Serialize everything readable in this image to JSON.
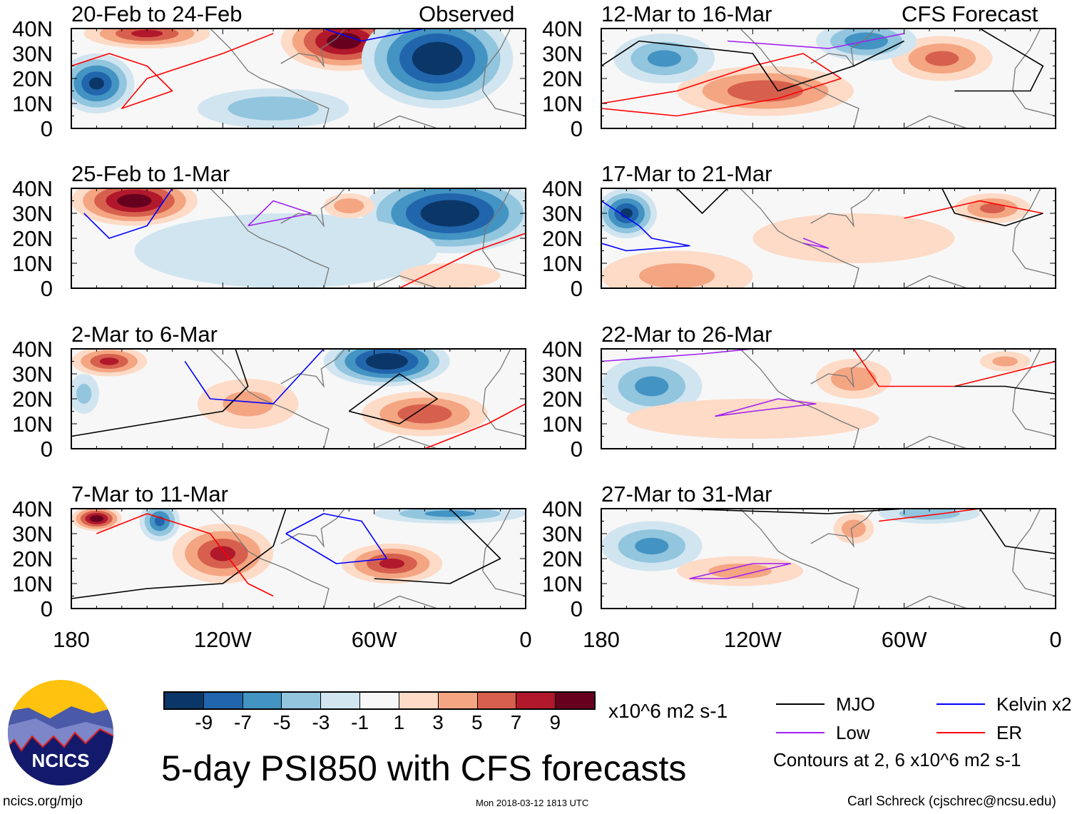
{
  "labels": {
    "observed": "Observed",
    "forecast": "CFS Forecast"
  },
  "lat_ticks": [
    "40N",
    "30N",
    "20N",
    "10N",
    "0"
  ],
  "lon_ticks": [
    "180",
    "120W",
    "60W",
    "0"
  ],
  "panels": [
    {
      "title": "20-Feb to 24-Feb",
      "anomalies": [
        [
          -170,
          18,
          -9,
          15,
          12
        ],
        [
          -72,
          35,
          10,
          25,
          12
        ],
        [
          -150,
          38,
          7,
          25,
          6
        ],
        [
          -35,
          28,
          -11,
          30,
          20
        ],
        [
          -100,
          8,
          -4,
          30,
          8
        ]
      ],
      "contours": [
        {
          "type": "ER",
          "pts": [
            [
              -180,
              25
            ],
            [
              -165,
              30
            ],
            [
              -150,
              25
            ],
            [
              -140,
              15
            ],
            [
              -160,
              8
            ],
            [
              -150,
              20
            ],
            [
              -120,
              30
            ],
            [
              -100,
              38
            ]
          ]
        },
        {
          "type": "Kelvin",
          "pts": [
            [
              -80,
              40
            ],
            [
              -65,
              35
            ],
            [
              -40,
              40
            ]
          ]
        }
      ]
    },
    {
      "title": "25-Feb to 1-Mar",
      "anomalies": [
        [
          -155,
          35,
          10,
          25,
          10
        ],
        [
          -30,
          30,
          -11,
          35,
          16
        ],
        [
          -95,
          15,
          -2,
          60,
          15
        ],
        [
          -70,
          33,
          4,
          10,
          5
        ],
        [
          -30,
          5,
          2,
          20,
          5
        ]
      ],
      "contours": [
        {
          "type": "Kelvin",
          "pts": [
            [
              -175,
              30
            ],
            [
              -165,
              20
            ],
            [
              -150,
              25
            ],
            [
              -140,
              40
            ]
          ]
        },
        {
          "type": "Low",
          "pts": [
            [
              -110,
              25
            ],
            [
              -100,
              35
            ],
            [
              -85,
              30
            ],
            [
              -110,
              25
            ]
          ]
        },
        {
          "type": "ER",
          "pts": [
            [
              -50,
              0
            ],
            [
              -20,
              15
            ],
            [
              0,
              22
            ]
          ]
        }
      ]
    },
    {
      "title": "2-Mar to 6-Mar",
      "anomalies": [
        [
          -165,
          35,
          7,
          15,
          6
        ],
        [
          -55,
          35,
          -11,
          25,
          10
        ],
        [
          -40,
          14,
          6,
          25,
          9
        ],
        [
          -110,
          18,
          3,
          20,
          10
        ],
        [
          -175,
          22,
          -3,
          6,
          8
        ]
      ],
      "contours": [
        {
          "type": "MJO",
          "pts": [
            [
              -180,
              5
            ],
            [
              -150,
              10
            ],
            [
              -120,
              15
            ],
            [
              -110,
              25
            ],
            [
              -115,
              40
            ]
          ]
        },
        {
          "type": "MJO",
          "pts": [
            [
              -70,
              15
            ],
            [
              -50,
              30
            ],
            [
              -35,
              20
            ],
            [
              -50,
              10
            ],
            [
              -70,
              15
            ]
          ]
        },
        {
          "type": "Kelvin",
          "pts": [
            [
              -135,
              35
            ],
            [
              -125,
              20
            ],
            [
              -100,
              18
            ],
            [
              -80,
              40
            ]
          ]
        },
        {
          "type": "ER",
          "pts": [
            [
              -40,
              0
            ],
            [
              -15,
              10
            ],
            [
              0,
              18
            ]
          ]
        }
      ]
    },
    {
      "title": "7-Mar to 11-Mar",
      "anomalies": [
        [
          -170,
          36,
          10,
          10,
          5
        ],
        [
          -145,
          35,
          -7,
          8,
          8
        ],
        [
          -120,
          22,
          7,
          20,
          12
        ],
        [
          -53,
          18,
          7,
          20,
          8
        ],
        [
          -30,
          38,
          -5,
          30,
          4
        ]
      ],
      "contours": [
        {
          "type": "MJO",
          "pts": [
            [
              -180,
              4
            ],
            [
              -150,
              8
            ],
            [
              -120,
              10
            ],
            [
              -100,
              25
            ],
            [
              -95,
              40
            ]
          ]
        },
        {
          "type": "MJO",
          "pts": [
            [
              -60,
              12
            ],
            [
              -30,
              10
            ],
            [
              -10,
              20
            ],
            [
              -30,
              40
            ]
          ]
        },
        {
          "type": "Kelvin",
          "pts": [
            [
              -95,
              30
            ],
            [
              -80,
              38
            ],
            [
              -65,
              35
            ],
            [
              -55,
              20
            ],
            [
              -75,
              18
            ],
            [
              -95,
              30
            ]
          ]
        },
        {
          "type": "ER",
          "pts": [
            [
              -170,
              30
            ],
            [
              -150,
              38
            ],
            [
              -125,
              30
            ],
            [
              -110,
              10
            ],
            [
              -100,
              5
            ]
          ]
        }
      ]
    },
    {
      "title": "12-Mar to 16-Mar",
      "anomalies": [
        [
          -115,
          15,
          6,
          35,
          10
        ],
        [
          -155,
          28,
          -5,
          20,
          10
        ],
        [
          -45,
          28,
          5,
          20,
          9
        ],
        [
          -75,
          35,
          -6,
          20,
          8
        ]
      ],
      "contours": [
        {
          "type": "ER",
          "pts": [
            [
              -180,
              10
            ],
            [
              -150,
              15
            ],
            [
              -120,
              25
            ],
            [
              -100,
              30
            ],
            [
              -85,
              20
            ],
            [
              -110,
              12
            ],
            [
              -150,
              5
            ],
            [
              -180,
              8
            ]
          ]
        },
        {
          "type": "MJO",
          "pts": [
            [
              -180,
              25
            ],
            [
              -165,
              35
            ],
            [
              -120,
              30
            ],
            [
              -110,
              15
            ],
            [
              -80,
              25
            ],
            [
              -60,
              35
            ]
          ]
        },
        {
          "type": "MJO",
          "pts": [
            [
              -40,
              15
            ],
            [
              -10,
              15
            ],
            [
              -5,
              25
            ],
            [
              -30,
              40
            ]
          ]
        },
        {
          "type": "Low",
          "pts": [
            [
              -130,
              35
            ],
            [
              -90,
              32
            ],
            [
              -60,
              38
            ]
          ]
        }
      ]
    },
    {
      "title": "17-Mar to 21-Mar",
      "anomalies": [
        [
          -170,
          30,
          -9,
          12,
          10
        ],
        [
          -25,
          32,
          5,
          15,
          6
        ],
        [
          -150,
          5,
          3,
          30,
          10
        ],
        [
          -80,
          20,
          1,
          40,
          10
        ]
      ],
      "contours": [
        {
          "type": "Kelvin",
          "pts": [
            [
              -180,
              35
            ],
            [
              -165,
              25
            ],
            [
              -160,
              20
            ],
            [
              -145,
              17
            ],
            [
              -170,
              15
            ],
            [
              -180,
              18
            ]
          ]
        },
        {
          "type": "MJO",
          "pts": [
            [
              -150,
              40
            ],
            [
              -140,
              30
            ],
            [
              -130,
              40
            ]
          ]
        },
        {
          "type": "Low",
          "pts": [
            [
              -100,
              18
            ],
            [
              -90,
              16
            ],
            [
              -100,
              20
            ]
          ]
        },
        {
          "type": "ER",
          "pts": [
            [
              -60,
              28
            ],
            [
              -30,
              35
            ],
            [
              -5,
              30
            ]
          ]
        },
        {
          "type": "MJO",
          "pts": [
            [
              -45,
              40
            ],
            [
              -40,
              30
            ],
            [
              -20,
              25
            ],
            [
              -5,
              30
            ]
          ]
        }
      ]
    },
    {
      "title": "22-Mar to 26-Mar",
      "anomalies": [
        [
          -160,
          25,
          -5,
          20,
          12
        ],
        [
          -80,
          28,
          4,
          15,
          8
        ],
        [
          -120,
          12,
          2,
          50,
          8
        ],
        [
          -20,
          35,
          3,
          10,
          4
        ]
      ],
      "contours": [
        {
          "type": "Low",
          "pts": [
            [
              -135,
              13
            ],
            [
              -110,
              20
            ],
            [
              -95,
              18
            ],
            [
              -120,
              15
            ],
            [
              -135,
              13
            ]
          ]
        },
        {
          "type": "Low",
          "pts": [
            [
              -180,
              35
            ],
            [
              -140,
              38
            ],
            [
              -120,
              40
            ]
          ]
        },
        {
          "type": "ER",
          "pts": [
            [
              -80,
              40
            ],
            [
              -70,
              25
            ],
            [
              -40,
              25
            ],
            [
              0,
              35
            ]
          ]
        },
        {
          "type": "MJO",
          "pts": [
            [
              -40,
              25
            ],
            [
              -20,
              25
            ],
            [
              0,
              22
            ]
          ]
        }
      ]
    },
    {
      "title": "27-Mar to 31-Mar",
      "anomalies": [
        [
          -160,
          25,
          -5,
          20,
          10
        ],
        [
          -125,
          15,
          3,
          25,
          6
        ],
        [
          -80,
          32,
          4,
          8,
          6
        ],
        [
          -50,
          38,
          -4,
          20,
          4
        ]
      ],
      "contours": [
        {
          "type": "Low",
          "pts": [
            [
              -145,
              12
            ],
            [
              -120,
              18
            ],
            [
              -105,
              18
            ],
            [
              -130,
              12
            ],
            [
              -145,
              12
            ]
          ]
        },
        {
          "type": "ER",
          "pts": [
            [
              -70,
              35
            ],
            [
              -45,
              38
            ],
            [
              -30,
              40
            ]
          ]
        },
        {
          "type": "MJO",
          "pts": [
            [
              -150,
              40
            ],
            [
              -90,
              38
            ],
            [
              -60,
              40
            ]
          ]
        },
        {
          "type": "MJO",
          "pts": [
            [
              -30,
              40
            ],
            [
              -20,
              25
            ],
            [
              0,
              22
            ]
          ]
        }
      ]
    }
  ],
  "colorbar": {
    "colors": [
      "#0b3768",
      "#2166ac",
      "#4393c3",
      "#92c5de",
      "#d1e5f0",
      "#f7f7f7",
      "#fddbc7",
      "#f4a582",
      "#d6604d",
      "#b2182b",
      "#67001f"
    ],
    "labels": [
      "-9",
      "-7",
      "-5",
      "-3",
      "-1",
      "1",
      "3",
      "5",
      "7",
      "9"
    ],
    "units": "x10^6 m2 s-1"
  },
  "legend": {
    "items": [
      {
        "label": "MJO",
        "color": "#000000"
      },
      {
        "label": "Kelvin x2",
        "color": "#0000ff"
      },
      {
        "label": "Low",
        "color": "#a020f0"
      },
      {
        "label": "ER",
        "color": "#ff0000"
      }
    ],
    "note": "Contours at 2, 6 x10^6 m2 s-1"
  },
  "title": "5-day PSI850 with CFS forecasts",
  "logo": "NCICS",
  "footer": {
    "url": "ncics.org/mjo",
    "timestamp": "Mon 2018-03-12 1813 UTC",
    "author": "Carl Schreck (cjschrec@ncsu.edu)"
  }
}
